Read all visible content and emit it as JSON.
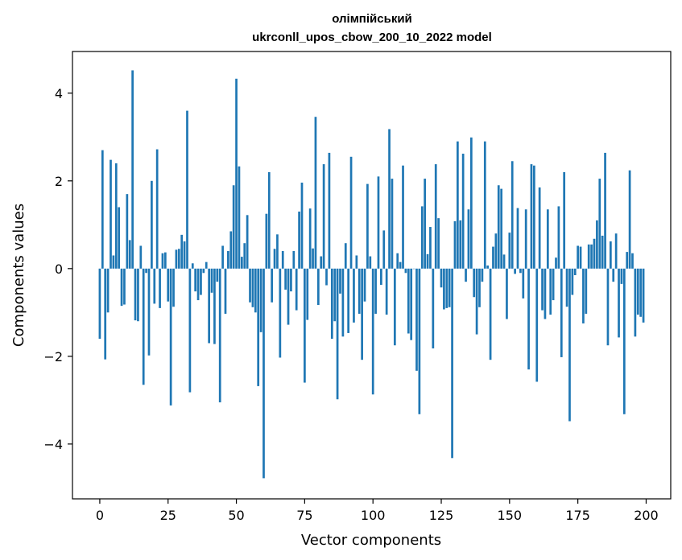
{
  "chart_data": {
    "type": "bar",
    "title_line1": "олімпійський",
    "title_line2": "ukrconll_upos_cbow_200_10_2022 model",
    "xlabel": "Vector components",
    "ylabel": "Components values",
    "xlim": [
      -10,
      209
    ],
    "ylim": [
      -5.25,
      4.95
    ],
    "xticks": [
      0,
      25,
      50,
      75,
      100,
      125,
      150,
      175,
      200
    ],
    "xtick_labels": [
      "0",
      "25",
      "50",
      "75",
      "100",
      "125",
      "150",
      "175",
      "200"
    ],
    "yticks": [
      -4,
      -2,
      0,
      2,
      4
    ],
    "ytick_labels": [
      "−4",
      "−2",
      "0",
      "2",
      "4"
    ],
    "bar_color": "#1f77b4",
    "grid": false,
    "values": [
      -1.6,
      2.7,
      -2.07,
      -1.0,
      2.48,
      0.3,
      2.4,
      1.4,
      -0.85,
      -0.82,
      1.7,
      0.65,
      4.52,
      -1.18,
      -1.2,
      0.52,
      -2.65,
      -0.1,
      -1.98,
      2.0,
      -0.8,
      2.72,
      -0.9,
      0.35,
      0.37,
      -0.75,
      -3.12,
      -0.87,
      0.43,
      0.45,
      0.77,
      0.62,
      3.6,
      -2.82,
      0.12,
      -0.52,
      -0.72,
      -0.6,
      -0.1,
      0.15,
      -1.7,
      -0.55,
      -1.72,
      -0.3,
      -3.05,
      0.52,
      -1.03,
      0.4,
      0.85,
      1.9,
      4.33,
      2.33,
      0.27,
      0.58,
      1.22,
      -0.77,
      -0.88,
      -1.0,
      -2.68,
      -1.45,
      -4.78,
      1.25,
      2.2,
      -0.77,
      0.45,
      0.78,
      -2.03,
      0.4,
      -0.48,
      -1.28,
      -0.52,
      0.4,
      -0.95,
      1.3,
      1.96,
      -2.6,
      -1.17,
      1.37,
      0.46,
      3.46,
      -0.83,
      0.28,
      2.38,
      -0.38,
      2.64,
      -1.6,
      -1.2,
      -2.98,
      -0.57,
      -1.55,
      0.58,
      -1.47,
      2.55,
      -1.23,
      0.3,
      -1.03,
      -2.08,
      -0.75,
      1.93,
      0.28,
      -2.87,
      -1.03,
      2.1,
      -0.37,
      0.87,
      -1.05,
      3.18,
      2.05,
      -1.75,
      0.35,
      0.15,
      2.35,
      -0.1,
      -1.48,
      -1.63,
      0.0,
      -2.33,
      -3.32,
      1.42,
      2.05,
      0.33,
      0.95,
      -1.82,
      2.38,
      1.15,
      -0.43,
      -0.93,
      -0.9,
      -0.88,
      -4.32,
      1.08,
      2.9,
      1.1,
      2.62,
      -0.3,
      1.35,
      2.99,
      -0.65,
      -1.5,
      -0.88,
      -0.3,
      2.9,
      0.07,
      -2.08,
      0.5,
      0.8,
      1.9,
      1.82,
      0.32,
      -1.15,
      0.82,
      2.45,
      -0.12,
      1.38,
      -0.1,
      -0.68,
      1.35,
      -2.3,
      2.38,
      2.35,
      -2.58,
      1.85,
      -0.95,
      -1.15,
      1.35,
      -1.05,
      -0.72,
      0.25,
      1.42,
      -2.02,
      2.2,
      -0.87,
      -3.48,
      -0.6,
      -0.15,
      0.52,
      0.5,
      -1.25,
      -1.03,
      0.55,
      0.55,
      0.68,
      1.1,
      2.05,
      0.75,
      2.64,
      -1.75,
      0.62,
      -0.3,
      0.8,
      -1.57,
      -0.35,
      -3.32,
      0.38,
      2.24,
      0.35,
      -1.55,
      -1.05,
      -1.1,
      -1.23
    ]
  }
}
